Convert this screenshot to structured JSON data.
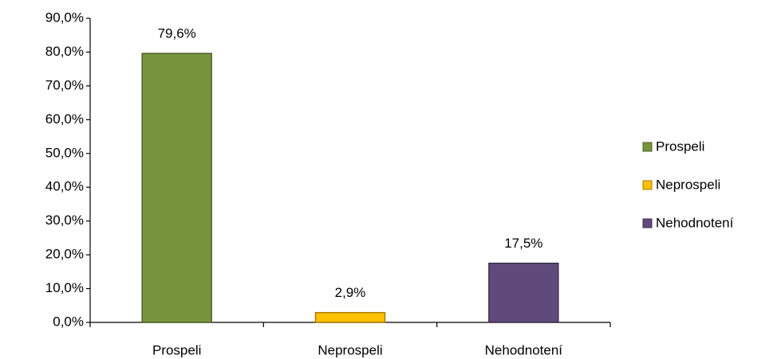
{
  "chart_data": {
    "type": "bar",
    "categories": [
      "Prospeli",
      "Neprospeli",
      "Nehodnotení"
    ],
    "values": [
      79.6,
      2.9,
      17.5
    ],
    "value_labels": [
      "79,6%",
      "2,9%",
      "17,5%"
    ],
    "colors": [
      "#77933c",
      "#ffc000",
      "#604a7b"
    ],
    "ylim": [
      0,
      90
    ],
    "yticks": [
      {
        "value": 0,
        "label": "0,0%"
      },
      {
        "value": 10,
        "label": "10,0%"
      },
      {
        "value": 20,
        "label": "20,0%"
      },
      {
        "value": 30,
        "label": "30,0%"
      },
      {
        "value": 40,
        "label": "40,0%"
      },
      {
        "value": 50,
        "label": "50,0%"
      },
      {
        "value": 60,
        "label": "60,0%"
      },
      {
        "value": 70,
        "label": "70,0%"
      },
      {
        "value": 80,
        "label": "80,0%"
      },
      {
        "value": 90,
        "label": "90,0%"
      }
    ],
    "grid": false,
    "legend": "right"
  }
}
